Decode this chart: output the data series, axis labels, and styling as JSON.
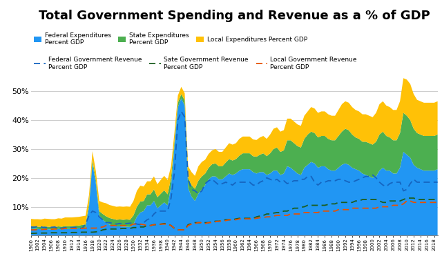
{
  "title": "Total Government Spending and Revenue as a % of GDP",
  "years": [
    1900,
    1901,
    1902,
    1903,
    1904,
    1905,
    1906,
    1907,
    1908,
    1909,
    1910,
    1911,
    1912,
    1913,
    1914,
    1915,
    1916,
    1917,
    1918,
    1919,
    1920,
    1921,
    1922,
    1923,
    1924,
    1925,
    1926,
    1927,
    1928,
    1929,
    1930,
    1931,
    1932,
    1933,
    1934,
    1935,
    1936,
    1937,
    1938,
    1939,
    1940,
    1941,
    1942,
    1943,
    1944,
    1945,
    1946,
    1947,
    1948,
    1949,
    1950,
    1951,
    1952,
    1953,
    1954,
    1955,
    1956,
    1957,
    1958,
    1959,
    1960,
    1961,
    1962,
    1963,
    1964,
    1965,
    1966,
    1967,
    1968,
    1969,
    1970,
    1971,
    1972,
    1973,
    1974,
    1975,
    1976,
    1977,
    1978,
    1979,
    1980,
    1981,
    1982,
    1983,
    1984,
    1985,
    1986,
    1987,
    1988,
    1989,
    1990,
    1991,
    1992,
    1993,
    1994,
    1995,
    1996,
    1997,
    1998,
    1999,
    2000,
    2001,
    2002,
    2003,
    2004,
    2005,
    2006,
    2007,
    2008,
    2009,
    2010,
    2011,
    2012,
    2013,
    2014,
    2015,
    2016,
    2017,
    2018,
    2019
  ],
  "federal_expenditure": [
    2.5,
    2.4,
    2.3,
    2.2,
    2.3,
    2.2,
    2.1,
    2.1,
    2.3,
    2.2,
    2.3,
    2.3,
    2.3,
    2.4,
    2.5,
    2.6,
    2.8,
    10.0,
    25.0,
    18.0,
    7.0,
    5.5,
    4.5,
    3.8,
    3.5,
    3.2,
    3.2,
    3.1,
    3.1,
    3.0,
    4.0,
    6.5,
    8.0,
    8.5,
    10.5,
    10.5,
    12.0,
    9.5,
    10.5,
    11.5,
    10.5,
    17.0,
    31.0,
    44.5,
    47.5,
    45.0,
    16.5,
    13.5,
    12.0,
    14.5,
    16.0,
    17.5,
    19.5,
    20.5,
    20.5,
    19.5,
    19.5,
    20.5,
    21.5,
    21.0,
    21.5,
    22.5,
    23.0,
    23.0,
    23.0,
    22.0,
    21.5,
    22.0,
    22.0,
    21.0,
    21.5,
    22.5,
    22.5,
    21.0,
    21.5,
    24.0,
    23.5,
    22.5,
    21.5,
    21.0,
    23.5,
    24.5,
    25.5,
    25.0,
    23.5,
    24.0,
    24.0,
    23.0,
    22.5,
    22.5,
    23.5,
    24.5,
    25.0,
    24.5,
    23.5,
    23.0,
    22.5,
    21.5,
    21.0,
    20.5,
    20.0,
    20.5,
    22.5,
    23.5,
    22.5,
    22.5,
    21.5,
    21.5,
    23.5,
    29.0,
    28.0,
    27.0,
    24.5,
    23.5,
    23.0,
    22.5,
    22.5,
    22.5,
    22.5,
    23.0
  ],
  "state_expenditure": [
    0.8,
    0.8,
    0.8,
    0.8,
    0.9,
    0.9,
    0.9,
    0.9,
    0.9,
    0.9,
    1.0,
    1.0,
    1.0,
    1.0,
    1.0,
    1.1,
    1.1,
    1.1,
    1.2,
    1.3,
    1.5,
    2.0,
    2.2,
    2.3,
    2.3,
    2.3,
    2.4,
    2.4,
    2.5,
    2.5,
    3.0,
    3.5,
    3.8,
    3.5,
    3.8,
    3.8,
    4.0,
    3.8,
    4.0,
    4.2,
    3.8,
    3.0,
    1.8,
    1.5,
    1.5,
    1.8,
    3.5,
    4.0,
    4.2,
    4.5,
    4.5,
    4.0,
    4.0,
    4.2,
    4.5,
    4.5,
    4.5,
    4.8,
    5.0,
    5.0,
    5.0,
    5.2,
    5.5,
    5.5,
    5.5,
    5.5,
    5.8,
    6.0,
    6.5,
    6.5,
    7.0,
    7.5,
    8.0,
    8.0,
    8.0,
    9.0,
    9.5,
    9.5,
    9.5,
    9.5,
    10.0,
    10.5,
    10.5,
    10.5,
    10.5,
    10.5,
    10.5,
    10.5,
    10.5,
    10.5,
    11.0,
    11.5,
    12.0,
    12.0,
    11.5,
    11.0,
    11.0,
    11.0,
    11.5,
    11.5,
    11.5,
    12.0,
    12.5,
    12.5,
    12.0,
    11.5,
    11.5,
    11.5,
    12.0,
    13.5,
    13.5,
    13.0,
    12.5,
    12.0,
    12.0,
    12.0,
    12.0,
    12.0,
    12.0,
    12.0
  ],
  "local_expenditure": [
    2.5,
    2.5,
    2.6,
    2.6,
    2.7,
    2.7,
    2.7,
    2.7,
    2.8,
    2.8,
    3.0,
    3.0,
    3.0,
    3.0,
    3.0,
    3.0,
    3.0,
    3.0,
    3.0,
    3.0,
    3.5,
    4.0,
    4.5,
    4.5,
    4.5,
    4.5,
    4.5,
    4.5,
    4.5,
    4.5,
    5.0,
    5.5,
    5.5,
    5.0,
    4.5,
    4.5,
    4.5,
    4.5,
    4.8,
    5.0,
    5.0,
    4.0,
    3.0,
    2.5,
    2.5,
    2.5,
    4.0,
    4.5,
    4.5,
    5.0,
    5.0,
    4.8,
    4.8,
    4.8,
    5.0,
    5.0,
    5.0,
    5.2,
    5.5,
    5.5,
    5.5,
    5.8,
    5.8,
    5.8,
    5.8,
    5.8,
    5.8,
    6.0,
    6.0,
    6.0,
    6.5,
    7.0,
    7.0,
    7.0,
    7.0,
    7.5,
    7.5,
    7.5,
    7.5,
    7.5,
    8.0,
    8.0,
    8.5,
    8.5,
    8.5,
    8.5,
    8.5,
    8.5,
    8.5,
    8.5,
    9.0,
    9.5,
    9.5,
    9.5,
    9.5,
    9.5,
    9.5,
    9.5,
    9.5,
    9.5,
    9.5,
    10.0,
    10.5,
    10.5,
    10.5,
    10.5,
    10.5,
    10.5,
    11.0,
    12.0,
    12.5,
    12.5,
    12.0,
    11.5,
    11.5,
    11.5,
    11.5,
    11.5,
    11.5,
    11.5
  ],
  "federal_revenue": [
    3.0,
    2.9,
    3.2,
    3.0,
    2.8,
    2.8,
    2.9,
    3.0,
    2.5,
    2.6,
    2.8,
    2.7,
    2.8,
    2.9,
    2.5,
    2.6,
    4.0,
    7.0,
    8.5,
    8.0,
    6.5,
    5.5,
    4.5,
    4.5,
    4.2,
    4.0,
    4.2,
    4.2,
    4.2,
    4.3,
    4.5,
    4.0,
    3.8,
    4.5,
    5.5,
    6.0,
    7.5,
    8.5,
    8.5,
    8.5,
    8.5,
    13.0,
    22.0,
    40.0,
    43.0,
    41.0,
    19.5,
    16.0,
    15.5,
    14.5,
    15.5,
    18.0,
    19.0,
    19.5,
    18.5,
    17.5,
    18.0,
    18.5,
    18.0,
    17.5,
    18.5,
    18.5,
    18.5,
    18.5,
    18.5,
    17.5,
    17.5,
    18.5,
    19.0,
    20.0,
    19.5,
    19.0,
    19.5,
    18.5,
    19.0,
    18.0,
    18.5,
    19.0,
    19.0,
    19.5,
    19.5,
    20.5,
    20.5,
    18.5,
    17.5,
    18.5,
    18.5,
    19.0,
    19.0,
    19.0,
    19.5,
    19.5,
    19.0,
    18.5,
    18.5,
    19.0,
    19.5,
    20.0,
    20.5,
    20.5,
    21.0,
    20.0,
    18.5,
    17.5,
    17.0,
    18.0,
    18.5,
    18.5,
    18.5,
    15.5,
    16.0,
    18.0,
    19.5,
    18.5,
    18.5,
    18.5,
    18.5,
    18.5,
    18.5,
    18.5
  ],
  "state_revenue": [
    0.8,
    0.8,
    0.9,
    0.9,
    0.9,
    0.9,
    1.0,
    1.0,
    1.0,
    1.0,
    1.0,
    1.0,
    1.1,
    1.1,
    1.1,
    1.2,
    1.2,
    1.2,
    1.2,
    1.3,
    1.5,
    2.0,
    2.2,
    2.3,
    2.3,
    2.3,
    2.4,
    2.5,
    2.5,
    2.5,
    2.8,
    2.8,
    3.0,
    3.0,
    3.5,
    3.5,
    3.8,
    3.8,
    4.0,
    4.2,
    4.0,
    3.5,
    2.5,
    2.0,
    2.0,
    2.0,
    3.8,
    4.2,
    4.5,
    4.5,
    4.5,
    4.5,
    4.5,
    4.8,
    5.0,
    5.0,
    5.2,
    5.5,
    5.5,
    5.5,
    5.8,
    6.0,
    6.0,
    6.0,
    6.0,
    6.0,
    6.5,
    6.8,
    7.0,
    7.5,
    7.5,
    7.8,
    8.0,
    8.0,
    8.5,
    8.5,
    9.0,
    9.5,
    9.5,
    9.8,
    10.0,
    10.5,
    10.5,
    10.5,
    10.5,
    10.5,
    10.5,
    10.8,
    11.0,
    11.0,
    11.5,
    11.5,
    11.5,
    11.5,
    11.5,
    12.0,
    12.0,
    12.5,
    12.5,
    12.5,
    12.5,
    12.5,
    12.0,
    11.5,
    11.5,
    12.0,
    12.0,
    12.0,
    12.0,
    12.5,
    13.0,
    13.0,
    13.0,
    12.5,
    12.5,
    12.5,
    12.5,
    12.5,
    12.5,
    12.5
  ],
  "local_revenue": [
    2.0,
    2.0,
    2.1,
    2.1,
    2.2,
    2.2,
    2.2,
    2.3,
    2.3,
    2.3,
    2.5,
    2.5,
    2.5,
    2.5,
    2.5,
    2.5,
    2.6,
    2.6,
    2.6,
    2.6,
    2.8,
    3.0,
    3.5,
    3.5,
    3.5,
    3.5,
    3.5,
    3.5,
    3.5,
    3.5,
    4.0,
    4.0,
    4.0,
    3.8,
    3.5,
    3.5,
    3.8,
    3.8,
    4.0,
    4.0,
    4.0,
    3.5,
    2.5,
    2.0,
    2.0,
    2.0,
    3.5,
    4.0,
    4.2,
    4.5,
    4.5,
    4.2,
    4.5,
    4.5,
    4.8,
    5.0,
    5.0,
    5.2,
    5.5,
    5.5,
    5.5,
    5.8,
    5.8,
    5.8,
    5.8,
    5.8,
    6.0,
    6.2,
    6.2,
    6.5,
    6.5,
    6.8,
    7.0,
    7.0,
    7.0,
    7.0,
    7.5,
    7.5,
    7.5,
    7.5,
    8.0,
    8.0,
    8.0,
    8.0,
    8.0,
    8.5,
    8.5,
    8.5,
    8.5,
    8.5,
    9.0,
    9.0,
    9.0,
    9.0,
    9.5,
    9.5,
    9.5,
    9.5,
    9.5,
    9.5,
    9.5,
    9.5,
    10.0,
    10.0,
    10.0,
    10.0,
    10.5,
    10.5,
    10.5,
    11.0,
    12.0,
    12.0,
    11.5,
    11.5,
    11.5,
    11.5,
    11.5,
    11.5,
    11.5,
    11.5
  ],
  "colors": {
    "federal_exp": "#2196F3",
    "state_exp": "#4CAF50",
    "local_exp": "#FFC107",
    "federal_rev": "#1565C0",
    "state_rev": "#1B5E20",
    "local_rev": "#E65100"
  },
  "bg_color": "#FFFFFF"
}
